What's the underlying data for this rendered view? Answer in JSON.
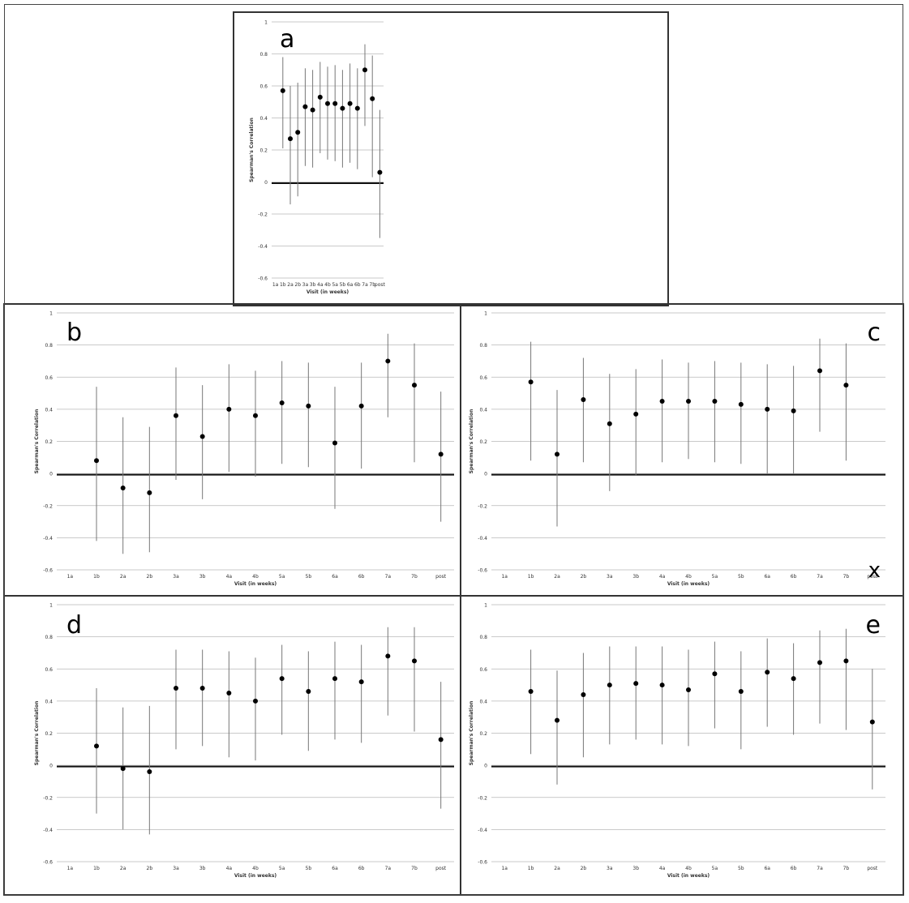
{
  "panel_letters": [
    "a",
    "b",
    "c",
    "x",
    "d",
    "e"
  ],
  "chart_data": [
    {
      "type": "scatter",
      "panel": "a",
      "ylabel": "Spearman's Correlation",
      "xlabel": "Visit (in weeks)",
      "ylim": [
        -0.6,
        1
      ],
      "yticks": [
        -0.6,
        -0.4,
        -0.2,
        0,
        0.2,
        0.4,
        0.6,
        0.8,
        1
      ],
      "categories": [
        "1a",
        "1b",
        "2a",
        "2b",
        "3a",
        "3b",
        "4a",
        "4b",
        "5a",
        "5b",
        "6a",
        "6b",
        "7a",
        "7b",
        "post"
      ],
      "values": [
        null,
        0.57,
        0.27,
        0.31,
        0.47,
        0.45,
        0.53,
        0.49,
        0.49,
        0.46,
        0.49,
        0.46,
        0.7,
        0.52,
        0.06
      ],
      "lower": [
        null,
        0.21,
        -0.14,
        -0.09,
        0.1,
        0.09,
        0.18,
        0.14,
        0.13,
        0.09,
        0.12,
        0.08,
        0.35,
        0.03,
        -0.35
      ],
      "upper": [
        null,
        0.78,
        0.6,
        0.62,
        0.71,
        0.7,
        0.75,
        0.72,
        0.73,
        0.7,
        0.74,
        0.71,
        0.86,
        0.79,
        0.45
      ],
      "grid": true
    },
    {
      "type": "scatter",
      "panel": "b",
      "ylabel": "Spearman's Correlation",
      "xlabel": "Visit (in weeks)",
      "ylim": [
        -0.6,
        1
      ],
      "yticks": [
        -0.6,
        -0.4,
        -0.2,
        0,
        0.2,
        0.4,
        0.6,
        0.8,
        1
      ],
      "categories": [
        "1a",
        "1b",
        "2a",
        "2b",
        "3a",
        "3b",
        "4a",
        "4b",
        "5a",
        "5b",
        "6a",
        "6b",
        "7a",
        "7b",
        "post"
      ],
      "values": [
        null,
        0.08,
        -0.09,
        -0.12,
        0.36,
        0.23,
        0.4,
        0.36,
        0.44,
        0.42,
        0.19,
        0.42,
        0.7,
        0.55,
        0.12
      ],
      "lower": [
        null,
        -0.42,
        -0.5,
        -0.49,
        -0.04,
        -0.16,
        0.01,
        -0.02,
        0.06,
        0.04,
        -0.22,
        0.03,
        0.35,
        0.07,
        -0.3
      ],
      "upper": [
        null,
        0.54,
        0.35,
        0.29,
        0.66,
        0.55,
        0.68,
        0.64,
        0.7,
        0.69,
        0.54,
        0.69,
        0.87,
        0.81,
        0.51
      ],
      "grid": true
    },
    {
      "type": "scatter",
      "panel": "c",
      "ylabel": "Spearman's Correlation",
      "xlabel": "Visit (in weeks)",
      "ylim": [
        -0.6,
        1
      ],
      "yticks": [
        -0.6,
        -0.4,
        -0.2,
        0,
        0.2,
        0.4,
        0.6,
        0.8,
        1
      ],
      "categories": [
        "1a",
        "1b",
        "2a",
        "2b",
        "3a",
        "3b",
        "4a",
        "4b",
        "5a",
        "5b",
        "6a",
        "6b",
        "7a",
        "7b",
        "post"
      ],
      "values": [
        null,
        0.57,
        0.12,
        0.46,
        0.31,
        0.37,
        0.45,
        0.45,
        0.45,
        0.43,
        0.4,
        0.39,
        0.64,
        0.55,
        null
      ],
      "lower": [
        null,
        0.08,
        -0.33,
        0.07,
        -0.11,
        -0.01,
        0.07,
        0.09,
        0.07,
        0.06,
        0.0,
        0.0,
        0.26,
        0.08,
        null
      ],
      "upper": [
        null,
        0.82,
        0.52,
        0.72,
        0.62,
        0.65,
        0.71,
        0.69,
        0.7,
        0.69,
        0.68,
        0.67,
        0.84,
        0.81,
        null
      ],
      "grid": true
    },
    {
      "type": "scatter",
      "panel": "d",
      "ylabel": "Spearman's Correlation",
      "xlabel": "Visit (in weeks)",
      "ylim": [
        -0.6,
        1
      ],
      "yticks": [
        -0.6,
        -0.4,
        -0.2,
        0,
        0.2,
        0.4,
        0.6,
        0.8,
        1
      ],
      "categories": [
        "1a",
        "1b",
        "2a",
        "2b",
        "3a",
        "3b",
        "4a",
        "4b",
        "5a",
        "5b",
        "6a",
        "6b",
        "7a",
        "7b",
        "post"
      ],
      "values": [
        null,
        0.12,
        -0.02,
        -0.04,
        0.48,
        0.48,
        0.45,
        0.4,
        0.54,
        0.46,
        0.54,
        0.52,
        0.68,
        0.65,
        0.16
      ],
      "lower": [
        null,
        -0.3,
        -0.4,
        -0.43,
        0.1,
        0.12,
        0.05,
        0.03,
        0.19,
        0.09,
        0.16,
        0.14,
        0.31,
        0.21,
        -0.27
      ],
      "upper": [
        null,
        0.48,
        0.36,
        0.37,
        0.72,
        0.72,
        0.71,
        0.67,
        0.75,
        0.71,
        0.77,
        0.75,
        0.86,
        0.86,
        0.52
      ],
      "grid": true
    },
    {
      "type": "scatter",
      "panel": "e",
      "ylabel": "Spearman's Correlation",
      "xlabel": "Visit (in weeks)",
      "ylim": [
        -0.6,
        1
      ],
      "yticks": [
        -0.6,
        -0.4,
        -0.2,
        0,
        0.2,
        0.4,
        0.6,
        0.8,
        1
      ],
      "categories": [
        "1a",
        "1b",
        "2a",
        "2b",
        "3a",
        "3b",
        "4a",
        "4b",
        "5a",
        "5b",
        "6a",
        "6b",
        "7a",
        "7b",
        "post"
      ],
      "values": [
        null,
        0.46,
        0.28,
        0.44,
        0.5,
        0.51,
        0.5,
        0.47,
        0.57,
        0.46,
        0.58,
        0.54,
        0.64,
        0.65,
        0.27
      ],
      "lower": [
        null,
        0.07,
        -0.12,
        0.05,
        0.13,
        0.16,
        0.13,
        0.12,
        0.23,
        0.1,
        0.24,
        0.19,
        0.26,
        0.22,
        -0.15
      ],
      "upper": [
        null,
        0.72,
        0.59,
        0.7,
        0.74,
        0.74,
        0.74,
        0.72,
        0.77,
        0.71,
        0.79,
        0.76,
        0.84,
        0.85,
        0.6
      ],
      "grid": true
    }
  ]
}
